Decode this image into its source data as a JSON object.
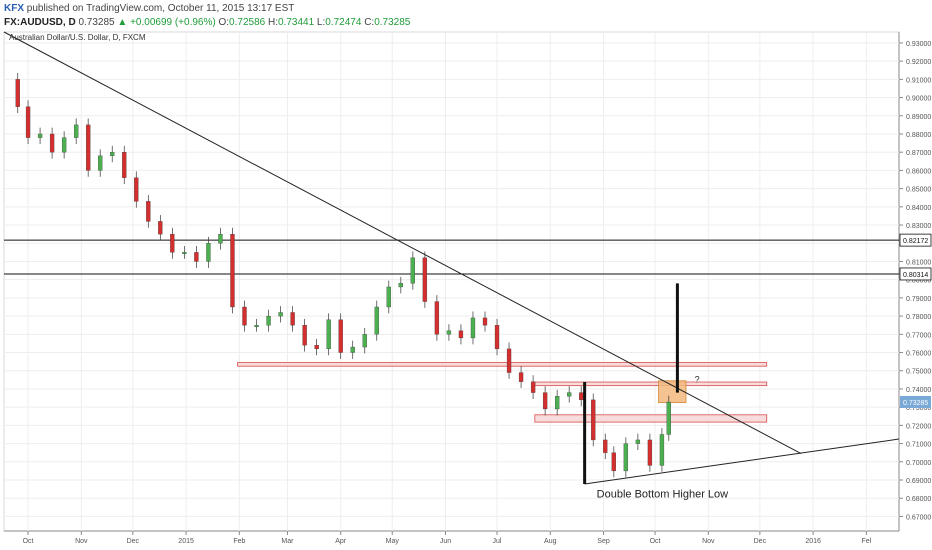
{
  "header": {
    "brand": "KFX",
    "published": "published on TradingView.com, October 11, 2015 13:17 EST",
    "symbol": "FX:AUDUSD, D",
    "last": "0.73285",
    "change_arrow": "▲",
    "change": "+0.00699 (+0.96%)",
    "open_label": "O:",
    "open": "0.72586",
    "high_label": "H:",
    "high": "0.73441",
    "low_label": "L:",
    "low": "0.72474",
    "close_label": "C:",
    "close": "0.73285"
  },
  "chart_data": {
    "type": "candlestick",
    "title": "Australian Dollar/U.S. Dollar, D, FXCM",
    "y_ticks": [
      "0.67000",
      "0.68000",
      "0.69000",
      "0.70000",
      "0.71000",
      "0.72000",
      "0.73000",
      "0.74000",
      "0.75000",
      "0.76000",
      "0.77000",
      "0.78000",
      "0.79000",
      "0.80000",
      "0.81000",
      "0.82000",
      "0.83000",
      "0.84000",
      "0.85000",
      "0.86000",
      "0.87000",
      "0.88000",
      "0.89000",
      "0.90000",
      "0.91000",
      "0.92000",
      "0.93000"
    ],
    "ylim": [
      0.662,
      0.936
    ],
    "x_labels": [
      "Oct",
      "Nov",
      "Dec",
      "2015",
      "Feb",
      "Mar",
      "Apr",
      "May",
      "Jun",
      "Jul",
      "Aug",
      "Sep",
      "Oct",
      "Nov",
      "Dec",
      "2016",
      "Fel"
    ],
    "x_label_dates": [
      "2014-10-01",
      "2014-11-01",
      "2014-12-01",
      "2015-01-01",
      "2015-02-01",
      "2015-03-01",
      "2015-04-01",
      "2015-05-01",
      "2015-06-01",
      "2015-07-01",
      "2015-08-01",
      "2015-09-01",
      "2015-10-01",
      "2015-11-01",
      "2015-12-01",
      "2016-01-01",
      "2016-02-01"
    ],
    "xlim": [
      "2014-09-17",
      "2016-02-20"
    ],
    "horizontal_levels": [
      {
        "value": 0.82172,
        "label": "0.82172"
      },
      {
        "value": 0.80314,
        "label": "0.80314"
      }
    ],
    "last_price": {
      "value": 0.73285,
      "label": "0.73285",
      "color": "#79a9d6"
    },
    "trendlines": [
      {
        "from": [
          "2014-09-17",
          0.936
        ],
        "to": [
          "2015-12-25",
          0.7045
        ]
      },
      {
        "from": [
          "2015-08-21",
          0.6878
        ],
        "to": [
          "2016-02-20",
          0.7125
        ]
      }
    ],
    "vertical_bars": [
      {
        "date": "2015-08-21",
        "from": 0.6878,
        "to": 0.7438
      },
      {
        "date": "2015-10-14",
        "from": 0.738,
        "to": 0.798
      }
    ],
    "zones": [
      {
        "x0": "2015-01-31",
        "x1": "2015-12-05",
        "y0": 0.7525,
        "y1": 0.7545,
        "fill": "#f6d6d6",
        "stroke": "#d94a4a"
      },
      {
        "x0": "2015-07-23",
        "x1": "2015-12-05",
        "y0": 0.7418,
        "y1": 0.7438,
        "fill": "#f6d6d6",
        "stroke": "#d94a4a"
      },
      {
        "x0": "2015-07-23",
        "x1": "2015-12-05",
        "y0": 0.7218,
        "y1": 0.7258,
        "fill": "#f6d6d6",
        "stroke": "#d94a4a"
      },
      {
        "x0": "2015-10-03",
        "x1": "2015-10-19",
        "y0": 0.7325,
        "y1": 0.7445,
        "fill": "#f2b87e",
        "stroke": "#d48a3c"
      }
    ],
    "annotations": [
      {
        "text": "Double Bottom Higher Low",
        "date": "2015-08-28",
        "value": 0.6805
      },
      {
        "text": "?",
        "date": "2015-10-24",
        "value": 0.7435
      }
    ],
    "series": [
      {
        "name": "FX:AUDUSD",
        "colors": {
          "up": "#4caf50",
          "down": "#d32f2f"
        },
        "points": [
          [
            "2014-09-18",
            0.91
          ],
          [
            "2014-09-25",
            0.895
          ],
          [
            "2014-10-01",
            0.878
          ],
          [
            "2014-10-08",
            0.88
          ],
          [
            "2014-10-15",
            0.87
          ],
          [
            "2014-10-22",
            0.878
          ],
          [
            "2014-10-29",
            0.885
          ],
          [
            "2014-11-05",
            0.86
          ],
          [
            "2014-11-12",
            0.868
          ],
          [
            "2014-11-19",
            0.87
          ],
          [
            "2014-11-26",
            0.856
          ],
          [
            "2014-12-03",
            0.843
          ],
          [
            "2014-12-10",
            0.832
          ],
          [
            "2014-12-17",
            0.825
          ],
          [
            "2014-12-24",
            0.815
          ],
          [
            "2014-12-31",
            0.815
          ],
          [
            "2015-01-07",
            0.81
          ],
          [
            "2015-01-14",
            0.82
          ],
          [
            "2015-01-21",
            0.825
          ],
          [
            "2015-01-28",
            0.785
          ],
          [
            "2015-02-04",
            0.775
          ],
          [
            "2015-02-11",
            0.775
          ],
          [
            "2015-02-18",
            0.78
          ],
          [
            "2015-02-25",
            0.782
          ],
          [
            "2015-03-04",
            0.775
          ],
          [
            "2015-03-11",
            0.764
          ],
          [
            "2015-03-18",
            0.762
          ],
          [
            "2015-03-25",
            0.778
          ],
          [
            "2015-04-01",
            0.76
          ],
          [
            "2015-04-08",
            0.763
          ],
          [
            "2015-04-15",
            0.77
          ],
          [
            "2015-04-22",
            0.785
          ],
          [
            "2015-04-29",
            0.796
          ],
          [
            "2015-05-06",
            0.798
          ],
          [
            "2015-05-13",
            0.812
          ],
          [
            "2015-05-20",
            0.788
          ],
          [
            "2015-05-27",
            0.77
          ],
          [
            "2015-06-03",
            0.772
          ],
          [
            "2015-06-10",
            0.768
          ],
          [
            "2015-06-17",
            0.779
          ],
          [
            "2015-06-24",
            0.775
          ],
          [
            "2015-07-01",
            0.762
          ],
          [
            "2015-07-08",
            0.749
          ],
          [
            "2015-07-15",
            0.744
          ],
          [
            "2015-07-22",
            0.738
          ],
          [
            "2015-07-29",
            0.729
          ],
          [
            "2015-08-05",
            0.736
          ],
          [
            "2015-08-12",
            0.738
          ],
          [
            "2015-08-19",
            0.734
          ],
          [
            "2015-08-26",
            0.712
          ],
          [
            "2015-09-02",
            0.705
          ],
          [
            "2015-09-07",
            0.695
          ],
          [
            "2015-09-14",
            0.71
          ],
          [
            "2015-09-21",
            0.712
          ],
          [
            "2015-09-28",
            0.698
          ],
          [
            "2015-10-05",
            0.715
          ],
          [
            "2015-10-09",
            0.7328
          ]
        ]
      }
    ]
  }
}
